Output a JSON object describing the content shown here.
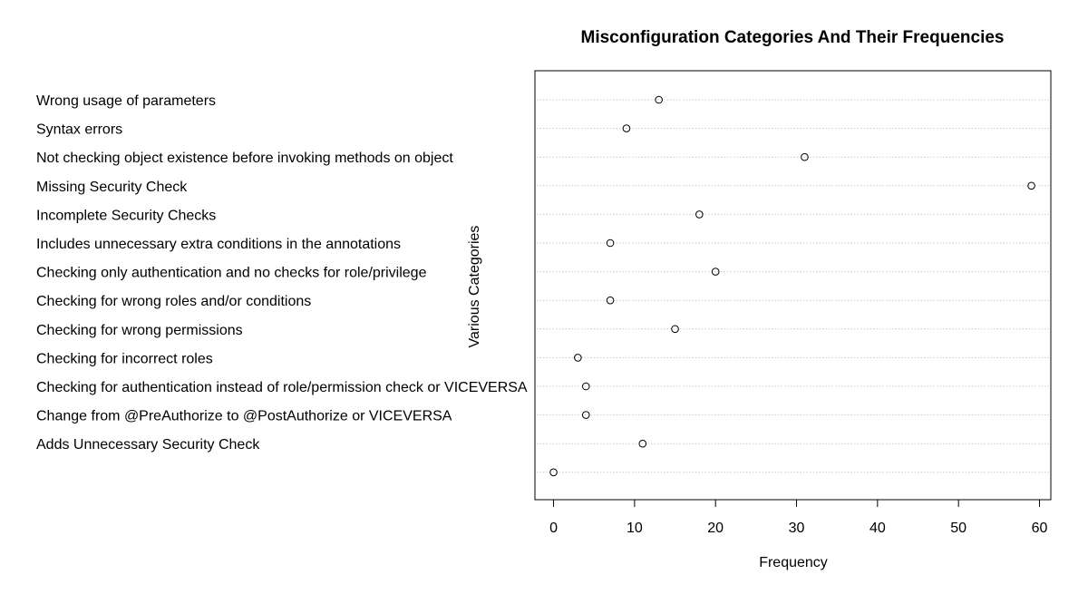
{
  "chart_data": {
    "type": "scatter",
    "title": "Misconfiguration Categories And Their Frequencies",
    "xlabel": "Frequency",
    "ylabel": "Various Categories",
    "xlim": [
      -2.3,
      61.4
    ],
    "x_ticks": [
      0,
      10,
      20,
      30,
      40,
      50,
      60
    ],
    "x_tick_labels": [
      "0",
      "10",
      "20",
      "30",
      "40",
      "50",
      "60"
    ],
    "grid": "horizontal dotted",
    "categories": [
      "Wrong usage of parameters",
      "Syntax errors",
      "Not checking object existence before invoking methods on object",
      "Missing Security Check",
      "Incomplete Security Checks",
      "Includes unnecessary extra conditions in the annotations",
      "Checking only authentication and no checks for role/privilege",
      "Checking for wrong roles and/or conditions",
      "Checking for wrong permissions",
      "Checking for incorrect roles",
      "Checking for authentication instead of role/permission check or VICEVERSA",
      "Change from @PreAuthorize to @PostAuthorize or VICEVERSA",
      "Adds Unnecessary Security Check",
      ""
    ],
    "series": [
      {
        "values": [
          13,
          9,
          31,
          59,
          18,
          7,
          20,
          7,
          15,
          3,
          4,
          4,
          11,
          0
        ]
      }
    ],
    "marker_color": "#000000",
    "grid_color": "#cccccc"
  }
}
